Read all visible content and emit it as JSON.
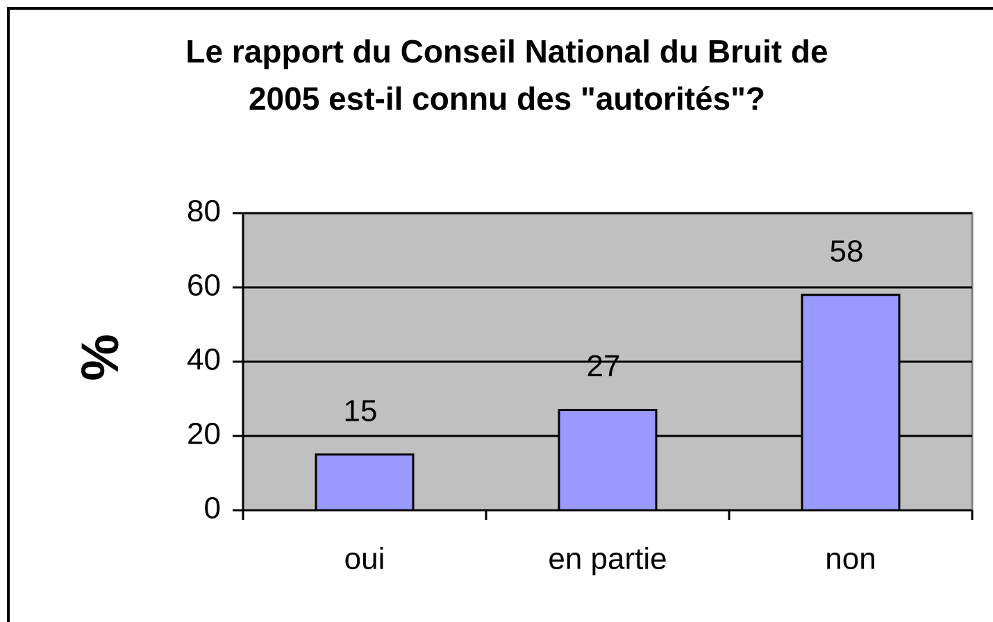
{
  "chart_data": {
    "type": "bar",
    "title": [
      "Le rapport du Conseil National du Bruit de",
      "2005  est-il connu des \"autorités\"?"
    ],
    "y_label": "%",
    "categories": [
      "oui",
      "en partie",
      "non"
    ],
    "values": [
      15,
      27,
      58
    ],
    "color": "#9999ff",
    "plot_background": "#c0c0c0",
    "ylim": [
      0,
      80
    ],
    "yticks": [
      0,
      20,
      40,
      60,
      80
    ],
    "grid": true
  }
}
